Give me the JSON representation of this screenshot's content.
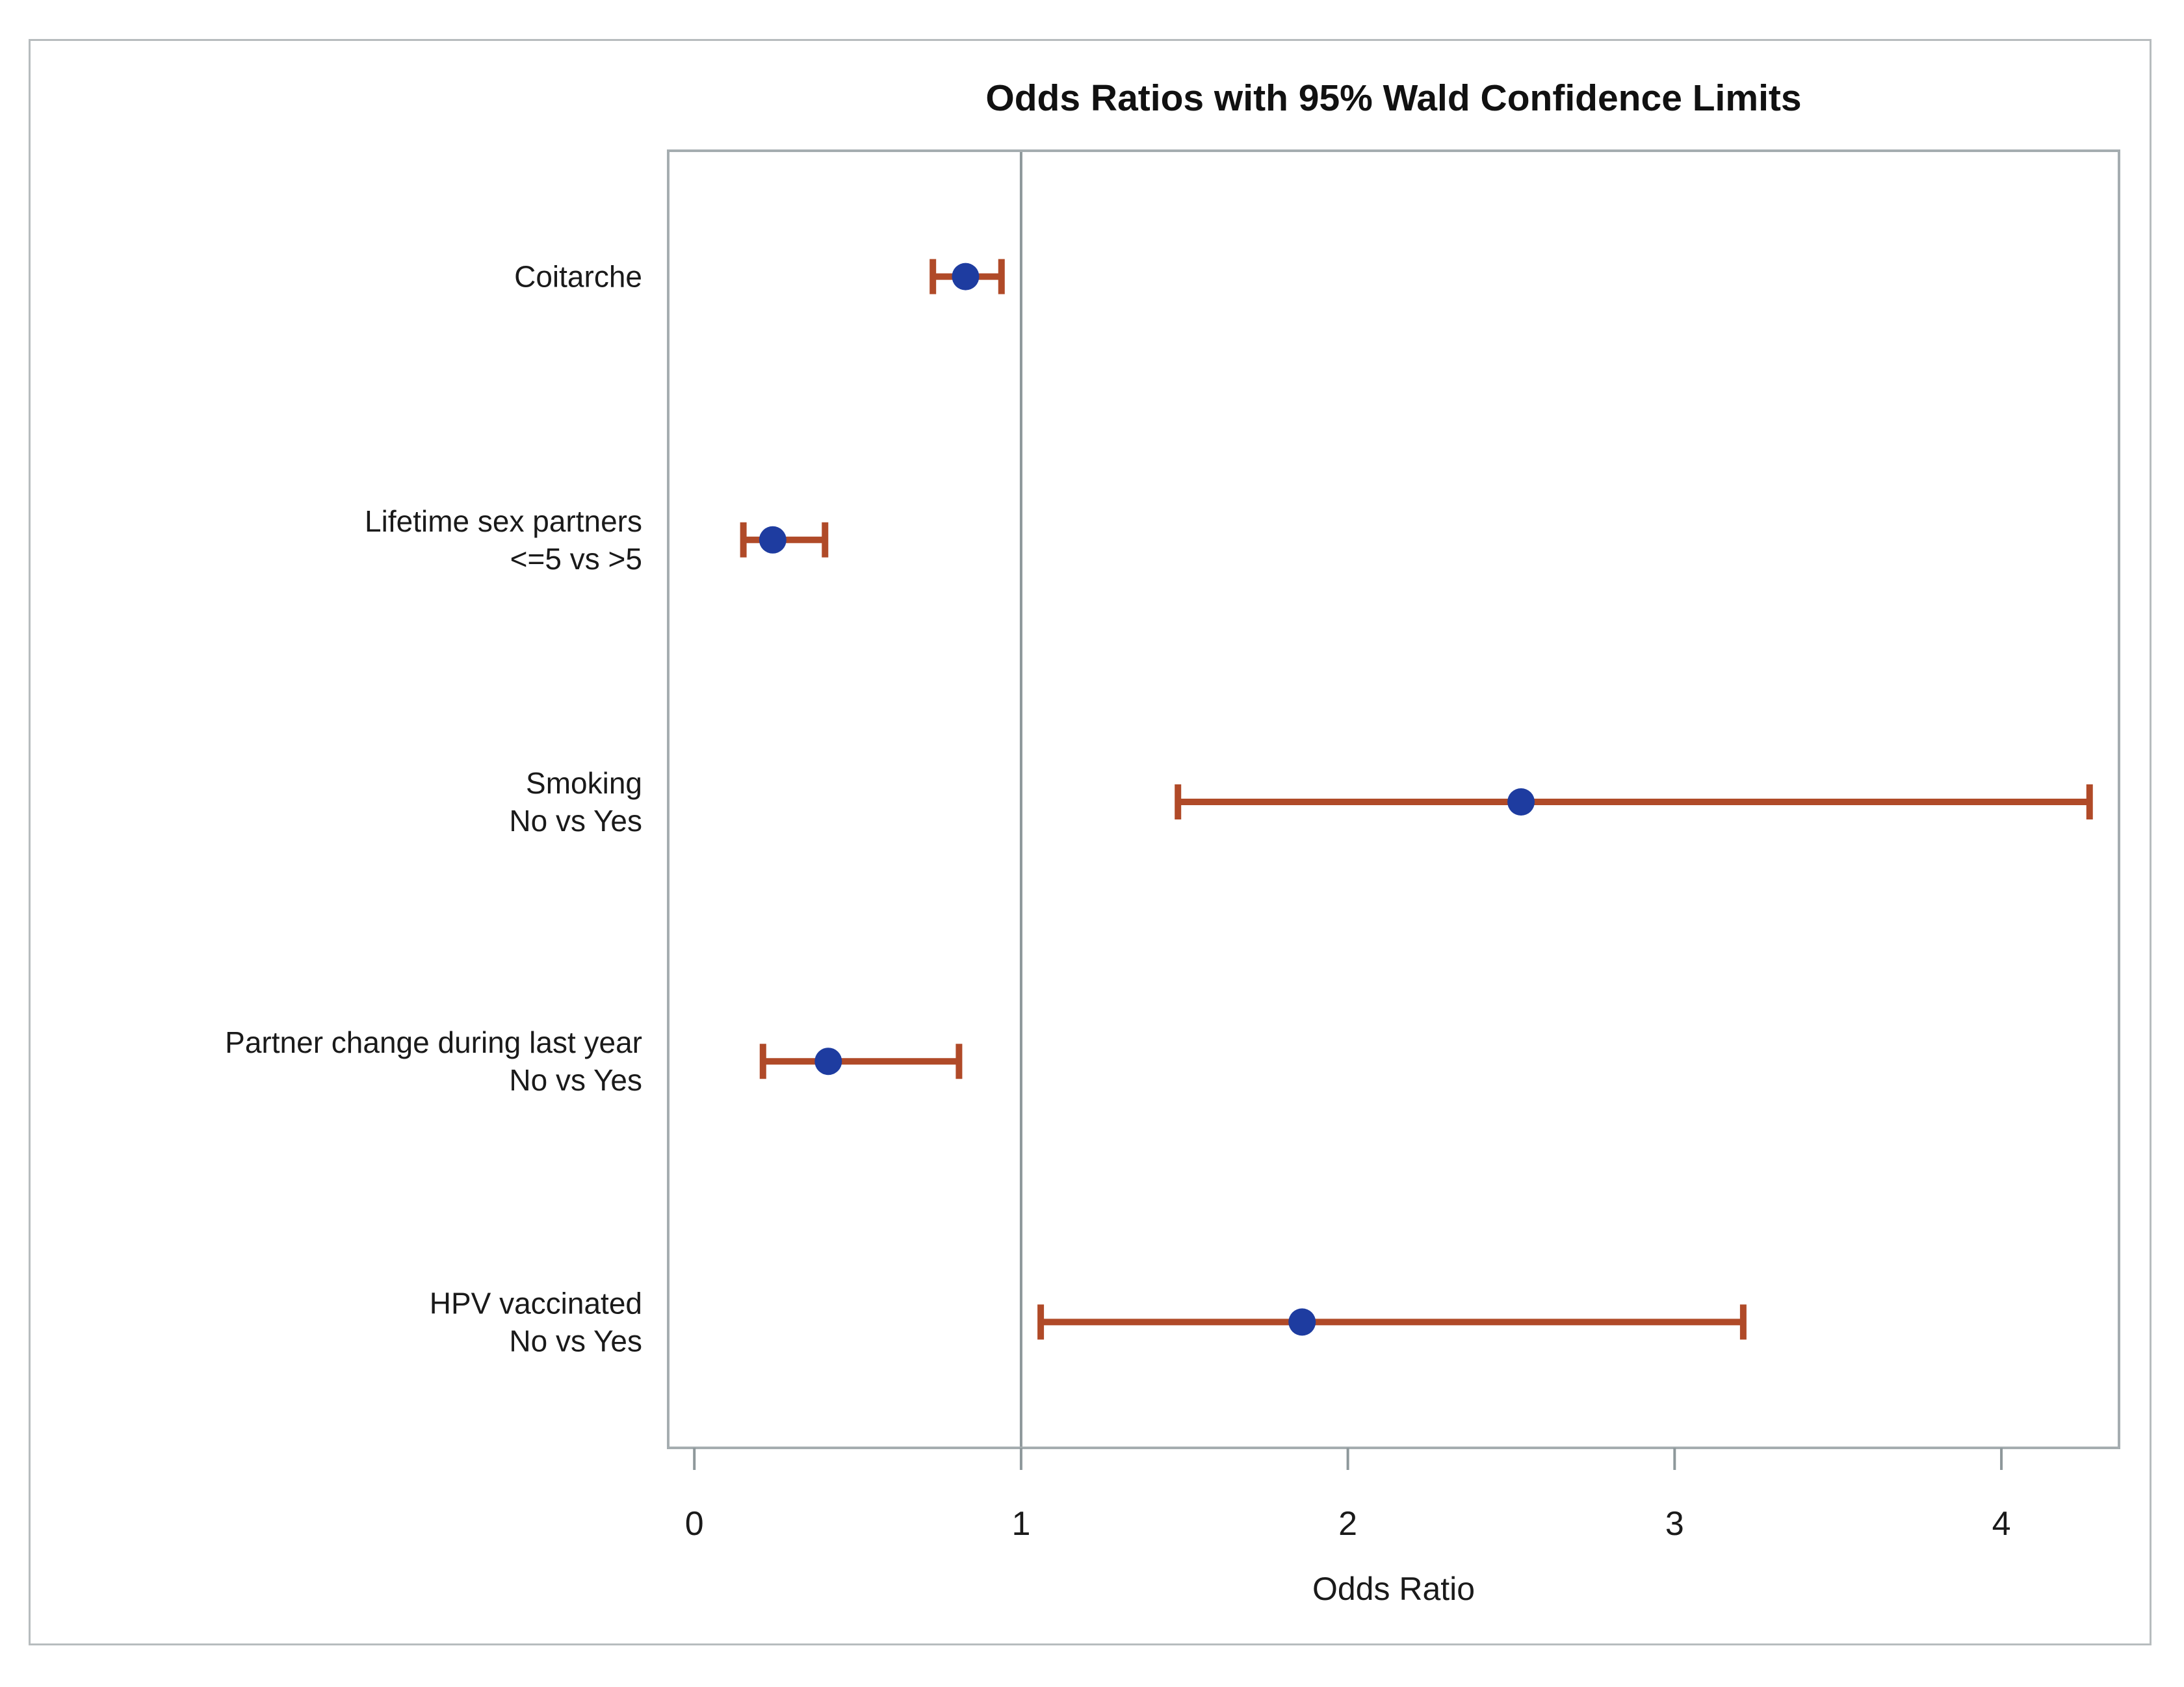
{
  "chart_data": {
    "type": "scatter",
    "subtype": "forest-plot-with-error-bars",
    "title": "Odds Ratios with 95% Wald Confidence Limits",
    "xlabel": "Odds Ratio",
    "xlim": [
      -0.08,
      4.36
    ],
    "xticks": [
      0,
      1,
      2,
      3,
      4
    ],
    "reference_line_x": 1,
    "grid": false,
    "legend": "none",
    "rows": [
      {
        "label_lines": [
          "Coitarche"
        ],
        "or": 0.83,
        "lcl": 0.73,
        "ucl": 0.94
      },
      {
        "label_lines": [
          "Lifetime sex partners",
          "<=5 vs >5"
        ],
        "or": 0.24,
        "lcl": 0.15,
        "ucl": 0.4
      },
      {
        "label_lines": [
          "Smoking",
          "No vs Yes"
        ],
        "or": 2.53,
        "lcl": 1.48,
        "ucl": 4.27
      },
      {
        "label_lines": [
          "Partner change during last year",
          "No vs Yes"
        ],
        "or": 0.41,
        "lcl": 0.21,
        "ucl": 0.81
      },
      {
        "label_lines": [
          "HPV vaccinated",
          "No vs Yes"
        ],
        "or": 1.86,
        "lcl": 1.06,
        "ucl": 3.21
      }
    ],
    "colors": {
      "marker": "#1e3ca0",
      "error_bar": "#b04a28",
      "reference_line": "#8e989b",
      "plot_border": "#a5adb0",
      "figure_border": "#b7bcbe",
      "tick": "#8e989b",
      "text": "#1a1a1a"
    }
  }
}
